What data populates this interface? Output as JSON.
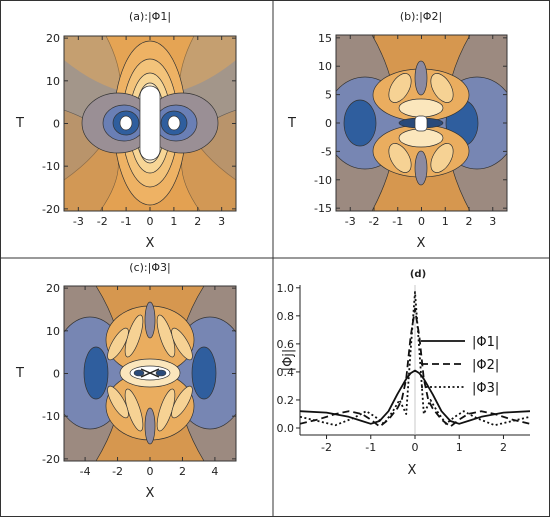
{
  "chart_data": [
    {
      "type": "contour",
      "title": "(a):|Φ1|",
      "xlabel": "X",
      "ylabel": "T",
      "xlim": [
        -3.6,
        3.6
      ],
      "ylim": [
        -20.5,
        20.5
      ],
      "xticks": [
        "-3",
        "-2",
        "-1",
        "0",
        "1",
        "2",
        "3"
      ],
      "yticks": [
        "-20",
        "-10",
        "0",
        "10",
        "20"
      ],
      "colors": [
        "#2a5a9a",
        "#5a7ab0",
        "#8a8aa8",
        "#a89c8a",
        "#d09a55",
        "#e4a555",
        "#f0c070",
        "#f8dca0",
        "#fdf2d8",
        "#ffffff"
      ]
    },
    {
      "type": "contour",
      "title": "(b):|Φ2|",
      "xlabel": "X",
      "ylabel": "T",
      "xlim": [
        -3.6,
        3.6
      ],
      "ylim": [
        -15.5,
        15.5
      ],
      "xticks": [
        "-3",
        "-2",
        "-1",
        "0",
        "1",
        "2",
        "3"
      ],
      "yticks": [
        "-15",
        "-10",
        "-5",
        "0",
        "5",
        "10",
        "15"
      ]
    },
    {
      "type": "contour",
      "title": "(c):|Φ3|",
      "xlabel": "X",
      "ylabel": "T",
      "xlim": [
        -5.3,
        5.3
      ],
      "ylim": [
        -20.5,
        20.5
      ],
      "xticks": [
        "-4",
        "-2",
        "0",
        "2",
        "4"
      ],
      "yticks": [
        "-20",
        "-10",
        "0",
        "10",
        "20"
      ]
    },
    {
      "type": "line",
      "title": "(d)",
      "xlabel": "X",
      "ylabel": "|Φj|",
      "xlim": [
        -2.6,
        2.6
      ],
      "ylim": [
        -0.05,
        1.02
      ],
      "xticks": [
        "-2",
        "-1",
        "0",
        "1",
        "2"
      ],
      "yticks": [
        "0.0",
        "0.2",
        "0.4",
        "0.6",
        "0.8",
        "1.0"
      ],
      "legend": "right",
      "series": [
        {
          "name": "|Φ1|",
          "style": "solid",
          "x": [
            -2.6,
            -2.0,
            -1.5,
            -1.2,
            -1.0,
            -0.8,
            -0.6,
            -0.4,
            -0.2,
            -0.1,
            0.0,
            0.1,
            0.2,
            0.4,
            0.6,
            0.8,
            1.0,
            1.2,
            1.5,
            2.0,
            2.6
          ],
          "y": [
            0.12,
            0.11,
            0.08,
            0.05,
            0.03,
            0.05,
            0.12,
            0.24,
            0.35,
            0.39,
            0.41,
            0.39,
            0.35,
            0.24,
            0.12,
            0.05,
            0.03,
            0.05,
            0.08,
            0.11,
            0.12
          ]
        },
        {
          "name": "|Φ2|",
          "style": "dashed",
          "x": [
            -2.6,
            -2.2,
            -1.8,
            -1.5,
            -1.2,
            -1.0,
            -0.8,
            -0.6,
            -0.4,
            -0.3,
            -0.2,
            -0.1,
            0.0,
            0.1,
            0.2,
            0.3,
            0.4,
            0.6,
            0.8,
            1.0,
            1.2,
            1.5,
            1.8,
            2.2,
            2.6
          ],
          "y": [
            0.03,
            0.06,
            0.1,
            0.12,
            0.1,
            0.06,
            0.01,
            0.06,
            0.14,
            0.2,
            0.35,
            0.65,
            0.85,
            0.65,
            0.35,
            0.2,
            0.14,
            0.06,
            0.01,
            0.06,
            0.1,
            0.12,
            0.1,
            0.06,
            0.03
          ]
        },
        {
          "name": "|Φ3|",
          "style": "dotted",
          "x": [
            -2.6,
            -2.2,
            -1.8,
            -1.4,
            -1.1,
            -0.9,
            -0.7,
            -0.5,
            -0.35,
            -0.2,
            -0.1,
            0.0,
            0.1,
            0.2,
            0.35,
            0.5,
            0.7,
            0.9,
            1.1,
            1.4,
            1.8,
            2.2,
            2.6
          ],
          "y": [
            0.08,
            0.05,
            0.02,
            0.07,
            0.12,
            0.08,
            0.03,
            0.12,
            0.2,
            0.1,
            0.55,
            0.97,
            0.55,
            0.1,
            0.2,
            0.12,
            0.03,
            0.08,
            0.12,
            0.07,
            0.02,
            0.05,
            0.08
          ]
        }
      ]
    }
  ]
}
